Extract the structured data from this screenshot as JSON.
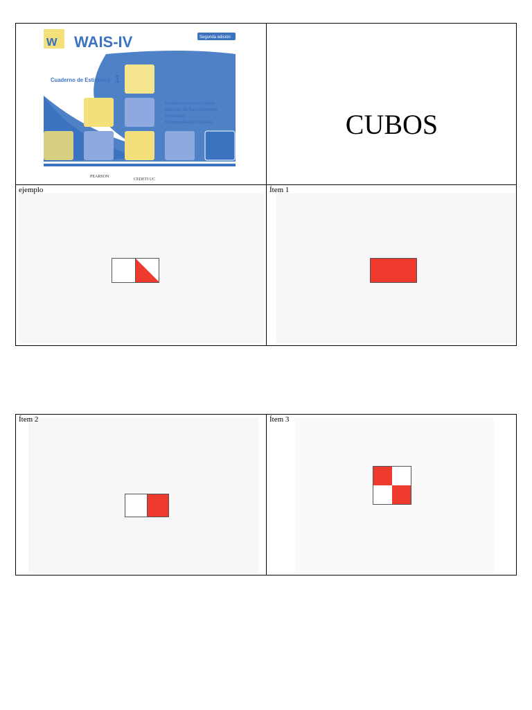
{
  "cover": {
    "title": "WAIS-IV",
    "subtitle": "Cuaderno de Estimulos",
    "number": "1",
    "subtests": [
      "Construcción con Cubos",
      "Matrices de Razonamiento",
      "Aritmética",
      "Rompecabezas Visuales"
    ],
    "badge": "Segunda edición",
    "publishers": [
      "PEARSON",
      "CEDETI UC"
    ]
  },
  "heading": "CUBOS",
  "cells": [
    {
      "label": "ejemplo"
    },
    {
      "label": "Ítem 1"
    },
    {
      "label": "Ítem 2"
    },
    {
      "label": "Ítem 3"
    }
  ],
  "colors": {
    "red": "#ee3a2c",
    "blue": "#3b73c0",
    "yellow": "#f3e07a"
  }
}
